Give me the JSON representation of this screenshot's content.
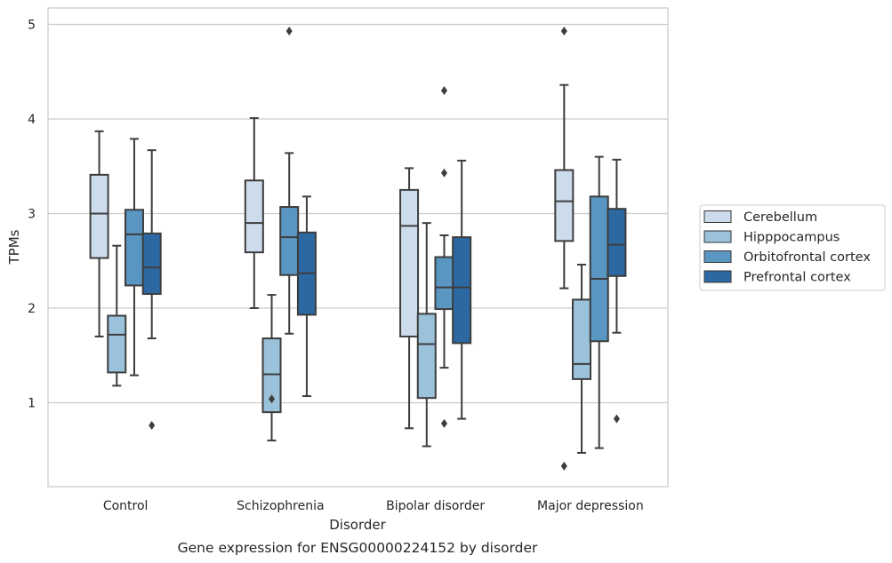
{
  "chart_data": {
    "type": "box",
    "categories": [
      "Control",
      "Schizophrenia",
      "Bipolar disorder",
      "Major depression"
    ],
    "xlabel": "Disorder",
    "ylabel": "TPMs",
    "caption": "Gene expression for ENSG00000224152 by disorder",
    "ylim": [
      0.1,
      5.17
    ],
    "yticks": [
      1,
      2,
      3,
      4,
      5
    ],
    "grid": "horizontal",
    "legend_position": "right",
    "series": [
      {
        "name": "Cerebellum",
        "color": "#cddcec",
        "boxes": [
          {
            "whisker_low": 1.7,
            "q1": 2.53,
            "median": 3.0,
            "q3": 3.41,
            "whisker_high": 3.87,
            "outliers": []
          },
          {
            "whisker_low": 2.0,
            "q1": 2.59,
            "median": 2.9,
            "q3": 3.35,
            "whisker_high": 4.01,
            "outliers": []
          },
          {
            "whisker_low": 0.73,
            "q1": 1.7,
            "median": 2.87,
            "q3": 3.25,
            "whisker_high": 3.48,
            "outliers": []
          },
          {
            "whisker_low": 2.21,
            "q1": 2.71,
            "median": 3.13,
            "q3": 3.46,
            "whisker_high": 4.36,
            "outliers": [
              4.93,
              0.33
            ]
          }
        ]
      },
      {
        "name": "Hipppocampus",
        "color": "#9ac2da",
        "boxes": [
          {
            "whisker_low": 1.18,
            "q1": 1.32,
            "median": 1.72,
            "q3": 1.92,
            "whisker_high": 2.66,
            "outliers": []
          },
          {
            "whisker_low": 0.6,
            "q1": 0.9,
            "median": 1.3,
            "q3": 1.68,
            "whisker_high": 2.14,
            "outliers": [
              1.04
            ]
          },
          {
            "whisker_low": 0.54,
            "q1": 1.05,
            "median": 1.62,
            "q3": 1.94,
            "whisker_high": 2.9,
            "outliers": []
          },
          {
            "whisker_low": 0.47,
            "q1": 1.25,
            "median": 1.41,
            "q3": 2.09,
            "whisker_high": 2.46,
            "outliers": []
          }
        ]
      },
      {
        "name": "Orbitofrontal cortex",
        "color": "#5a96c2",
        "boxes": [
          {
            "whisker_low": 1.29,
            "q1": 2.24,
            "median": 2.78,
            "q3": 3.04,
            "whisker_high": 3.79,
            "outliers": []
          },
          {
            "whisker_low": 1.73,
            "q1": 2.35,
            "median": 2.75,
            "q3": 3.07,
            "whisker_high": 3.64,
            "outliers": [
              4.93
            ]
          },
          {
            "whisker_low": 1.37,
            "q1": 1.99,
            "median": 2.22,
            "q3": 2.54,
            "whisker_high": 2.77,
            "outliers": [
              4.3,
              3.43,
              0.78
            ]
          },
          {
            "whisker_low": 0.52,
            "q1": 1.65,
            "median": 2.31,
            "q3": 3.18,
            "whisker_high": 3.6,
            "outliers": []
          }
        ]
      },
      {
        "name": "Prefrontal cortex",
        "color": "#2c69a3",
        "boxes": [
          {
            "whisker_low": 1.68,
            "q1": 2.15,
            "median": 2.43,
            "q3": 2.79,
            "whisker_high": 3.67,
            "outliers": [
              0.76
            ]
          },
          {
            "whisker_low": 1.07,
            "q1": 1.93,
            "median": 2.37,
            "q3": 2.8,
            "whisker_high": 3.18,
            "outliers": []
          },
          {
            "whisker_low": 0.83,
            "q1": 1.63,
            "median": 2.22,
            "q3": 2.75,
            "whisker_high": 3.56,
            "outliers": []
          },
          {
            "whisker_low": 1.74,
            "q1": 2.34,
            "median": 2.67,
            "q3": 3.05,
            "whisker_high": 3.57,
            "outliers": [
              0.83
            ]
          }
        ]
      }
    ]
  }
}
